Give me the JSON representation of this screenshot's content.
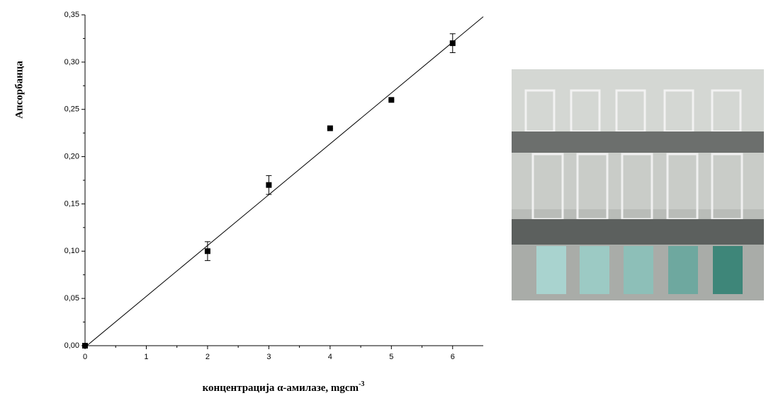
{
  "chart_data": {
    "type": "scatter",
    "x_label": "концентрација α-амилазе, mgcm",
    "x_label_superscript": "-3",
    "y_label": "Апсорбанца",
    "x": [
      0,
      2,
      3,
      4,
      5,
      6
    ],
    "values": [
      0,
      0.1,
      0.17,
      0.23,
      0.26,
      0.32
    ],
    "errors": [
      0,
      0.01,
      0.01,
      0,
      0,
      0.01
    ],
    "color": "#000000",
    "fit_line": {
      "x": [
        0.03,
        6.5
      ],
      "y": [
        0,
        0.348
      ]
    },
    "xlim": [
      0,
      6.5
    ],
    "xticks": [
      0,
      1,
      2,
      3,
      4,
      5,
      6
    ],
    "ylim": [
      0,
      0.35
    ],
    "yticks": [
      {
        "value": 0,
        "label": "0,00"
      },
      {
        "value": 0.05,
        "label": "0,05"
      },
      {
        "value": 0.1,
        "label": "0,10"
      },
      {
        "value": 0.15,
        "label": "0,15"
      },
      {
        "value": 0.2,
        "label": "0,20"
      },
      {
        "value": 0.25,
        "label": "0,25"
      },
      {
        "value": 0.3,
        "label": "0,30"
      },
      {
        "value": 0.35,
        "label": "0,35"
      }
    ]
  }
}
